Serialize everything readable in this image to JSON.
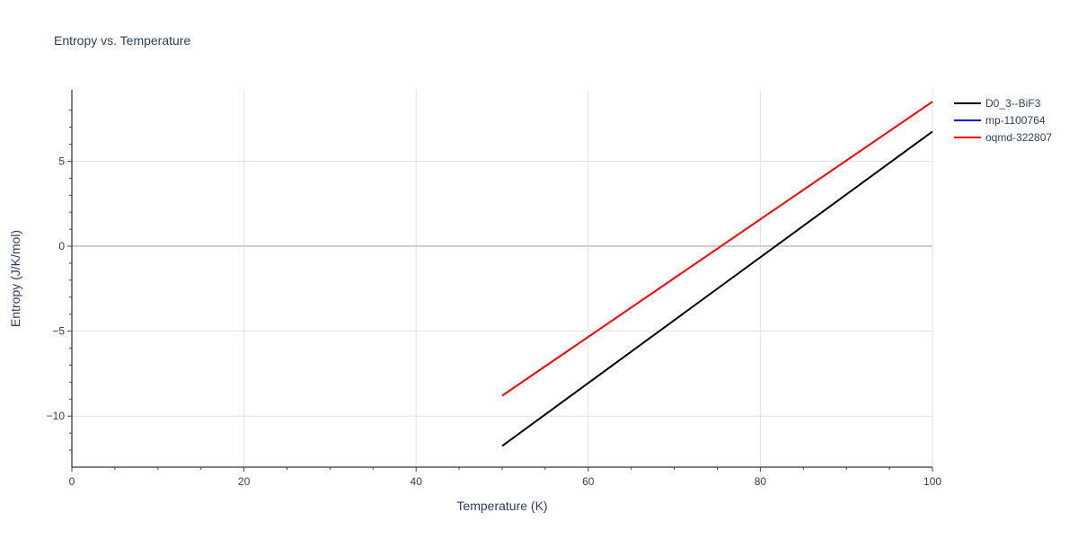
{
  "chart_data": {
    "type": "line",
    "title": "Entropy vs. Temperature",
    "xlabel": "Temperature (K)",
    "ylabel": "Entropy (J/K/mol)",
    "xlim": [
      0,
      100
    ],
    "ylim": [
      -13,
      9.2
    ],
    "x_ticks": [
      0,
      20,
      40,
      60,
      80,
      100
    ],
    "x_tick_labels": [
      "0",
      "20",
      "40",
      "60",
      "80",
      "100"
    ],
    "y_ticks": [
      -10,
      -5,
      0,
      5
    ],
    "y_tick_labels": [
      "−10",
      "−5",
      "0",
      "5"
    ],
    "grid": true,
    "legend_position": "top-right",
    "series": [
      {
        "name": "D0_3--BiF3",
        "color": "#000000",
        "x": [
          50,
          100
        ],
        "y": [
          -11.75,
          6.75
        ]
      },
      {
        "name": "mp-1100764",
        "color": "#0000ff",
        "x": [],
        "y": []
      },
      {
        "name": "oqmd-322807",
        "color": "#ff0000",
        "x": [
          50,
          100
        ],
        "y": [
          -8.8,
          8.5
        ]
      }
    ]
  }
}
